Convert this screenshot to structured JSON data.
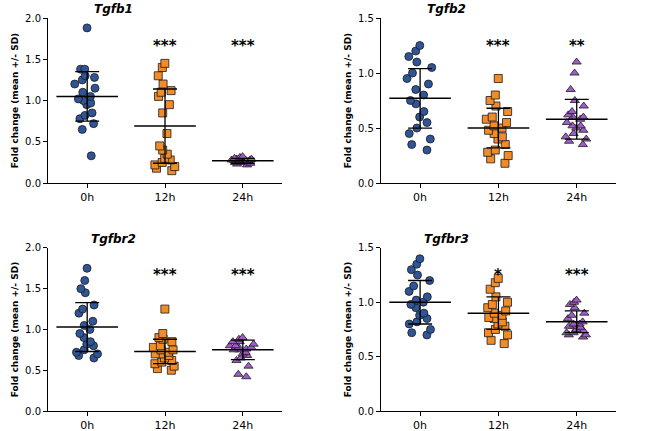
{
  "chart_data": [
    {
      "type": "scatter",
      "title": "Tgfb1",
      "y_label": "Fold change (mean +/- SD)",
      "grid": false,
      "categories": [
        "0h",
        "12h",
        "24h"
      ],
      "ylim": [
        0,
        2
      ],
      "yticks": [
        {
          "value": 0,
          "label": "0.0"
        },
        {
          "value": 0.5,
          "label": "0.5"
        },
        {
          "value": 1,
          "label": "1.0"
        },
        {
          "value": 1.5,
          "label": "1.5"
        },
        {
          "value": 2,
          "label": "2.0"
        }
      ],
      "groups": [
        {
          "category": "0h",
          "color": "#2f5597",
          "marker": "circle",
          "mean": 1.05,
          "sd": 0.3,
          "values": [
            1.88,
            1.38,
            1.38,
            1.3,
            1.28,
            1.25,
            1.2,
            1.15,
            1.1,
            1.05,
            1.02,
            1.0,
            0.97,
            0.95,
            0.85,
            0.82,
            0.78,
            0.72,
            0.65,
            0.33
          ]
        },
        {
          "category": "12h",
          "color": "#f28c28",
          "marker": "square",
          "mean": 0.69,
          "sd": 0.45,
          "annotation": "***",
          "values": [
            1.45,
            1.4,
            1.3,
            1.2,
            1.12,
            1.1,
            1.05,
            0.95,
            0.85,
            0.6,
            0.45,
            0.4,
            0.35,
            0.3,
            0.28,
            0.25,
            0.22,
            0.2,
            0.18,
            0.15
          ]
        },
        {
          "category": "24h",
          "color": "#a05cc8",
          "marker": "triangle-up",
          "mean": 0.27,
          "sd": 0.03,
          "annotation": "***",
          "values": [
            0.32,
            0.31,
            0.3,
            0.3,
            0.29,
            0.29,
            0.28,
            0.28,
            0.28,
            0.27,
            0.27,
            0.27,
            0.26,
            0.26,
            0.26,
            0.25,
            0.25,
            0.24,
            0.23,
            0.22
          ]
        }
      ]
    },
    {
      "type": "scatter",
      "title": "Tgfb2",
      "y_label": "Fold change (mean +/- SD)",
      "grid": false,
      "categories": [
        "0h",
        "12h",
        "24h"
      ],
      "ylim": [
        0,
        1.5
      ],
      "yticks": [
        {
          "value": 0,
          "label": "0.0"
        },
        {
          "value": 0.5,
          "label": "0.5"
        },
        {
          "value": 1,
          "label": "1.0"
        },
        {
          "value": 1.5,
          "label": "1.5"
        }
      ],
      "groups": [
        {
          "category": "0h",
          "color": "#2f5597",
          "marker": "circle",
          "mean": 0.77,
          "sd": 0.27,
          "values": [
            1.25,
            1.2,
            1.15,
            1.1,
            1.05,
            1.0,
            0.95,
            0.9,
            0.85,
            0.8,
            0.75,
            0.72,
            0.65,
            0.6,
            0.55,
            0.5,
            0.45,
            0.4,
            0.35,
            0.3
          ]
        },
        {
          "category": "12h",
          "color": "#f28c28",
          "marker": "square",
          "mean": 0.5,
          "sd": 0.18,
          "annotation": "***",
          "values": [
            0.95,
            0.8,
            0.75,
            0.7,
            0.65,
            0.6,
            0.58,
            0.55,
            0.52,
            0.5,
            0.48,
            0.45,
            0.42,
            0.4,
            0.35,
            0.3,
            0.28,
            0.25,
            0.22,
            0.18
          ]
        },
        {
          "category": "24h",
          "color": "#a05cc8",
          "marker": "triangle-up",
          "mean": 0.58,
          "sd": 0.18,
          "annotation": "**",
          "values": [
            1.1,
            1.0,
            0.85,
            0.75,
            0.7,
            0.65,
            0.62,
            0.6,
            0.6,
            0.58,
            0.55,
            0.52,
            0.52,
            0.5,
            0.48,
            0.45,
            0.42,
            0.4,
            0.38,
            0.35
          ]
        }
      ]
    },
    {
      "type": "scatter",
      "title": "Tgfbr2",
      "y_label": "Fold change (mean +/- SD)",
      "grid": false,
      "categories": [
        "0h",
        "12h",
        "24h"
      ],
      "ylim": [
        0,
        2
      ],
      "yticks": [
        {
          "value": 0,
          "label": "0.0"
        },
        {
          "value": 0.5,
          "label": "0.5"
        },
        {
          "value": 1,
          "label": "1.0"
        },
        {
          "value": 1.5,
          "label": "1.5"
        },
        {
          "value": 2,
          "label": "2.0"
        }
      ],
      "groups": [
        {
          "category": "0h",
          "color": "#2f5597",
          "marker": "circle",
          "mean": 1.03,
          "sd": 0.3,
          "values": [
            1.75,
            1.6,
            1.5,
            1.45,
            1.3,
            1.25,
            1.2,
            1.1,
            1.05,
            1.0,
            0.95,
            0.9,
            0.85,
            0.82,
            0.8,
            0.75,
            0.72,
            0.7,
            0.68,
            0.65
          ]
        },
        {
          "category": "12h",
          "color": "#f28c28",
          "marker": "square",
          "mean": 0.73,
          "sd": 0.15,
          "annotation": "***",
          "values": [
            1.25,
            0.95,
            0.9,
            0.88,
            0.85,
            0.8,
            0.78,
            0.75,
            0.75,
            0.72,
            0.7,
            0.7,
            0.68,
            0.65,
            0.62,
            0.6,
            0.58,
            0.55,
            0.52,
            0.5
          ]
        },
        {
          "category": "24h",
          "color": "#a05cc8",
          "marker": "triangle-up",
          "mean": 0.75,
          "sd": 0.12,
          "annotation": "***",
          "values": [
            0.9,
            0.88,
            0.85,
            0.85,
            0.82,
            0.8,
            0.8,
            0.78,
            0.78,
            0.76,
            0.75,
            0.75,
            0.72,
            0.7,
            0.68,
            0.65,
            0.62,
            0.55,
            0.45,
            0.42
          ]
        }
      ]
    },
    {
      "type": "scatter",
      "title": "Tgfbr3",
      "y_label": "Fold change (mean +/- SD)",
      "grid": false,
      "categories": [
        "0h",
        "12h",
        "24h"
      ],
      "ylim": [
        0,
        1.5
      ],
      "yticks": [
        {
          "value": 0,
          "label": "0.0"
        },
        {
          "value": 0.5,
          "label": "0.5"
        },
        {
          "value": 1,
          "label": "1.0"
        },
        {
          "value": 1.5,
          "label": "1.5"
        }
      ],
      "groups": [
        {
          "category": "0h",
          "color": "#2f5597",
          "marker": "circle",
          "mean": 1.0,
          "sd": 0.2,
          "values": [
            1.4,
            1.35,
            1.3,
            1.25,
            1.2,
            1.15,
            1.1,
            1.05,
            1.02,
            1.0,
            0.98,
            0.95,
            0.9,
            0.88,
            0.85,
            0.82,
            0.8,
            0.75,
            0.72,
            0.7
          ]
        },
        {
          "category": "12h",
          "color": "#f28c28",
          "marker": "square",
          "mean": 0.9,
          "sd": 0.15,
          "annotation": "*",
          "values": [
            1.22,
            1.18,
            1.12,
            1.05,
            1.0,
            0.98,
            0.95,
            0.92,
            0.9,
            0.88,
            0.86,
            0.85,
            0.82,
            0.8,
            0.78,
            0.75,
            0.72,
            0.7,
            0.65,
            0.62
          ]
        },
        {
          "category": "24h",
          "color": "#a05cc8",
          "marker": "triangle-up",
          "mean": 0.82,
          "sd": 0.1,
          "annotation": "***",
          "values": [
            1.02,
            1.0,
            0.98,
            0.95,
            0.9,
            0.88,
            0.85,
            0.82,
            0.8,
            0.8,
            0.78,
            0.78,
            0.77,
            0.75,
            0.74,
            0.72,
            0.72,
            0.7,
            0.7,
            0.68
          ]
        }
      ]
    }
  ]
}
